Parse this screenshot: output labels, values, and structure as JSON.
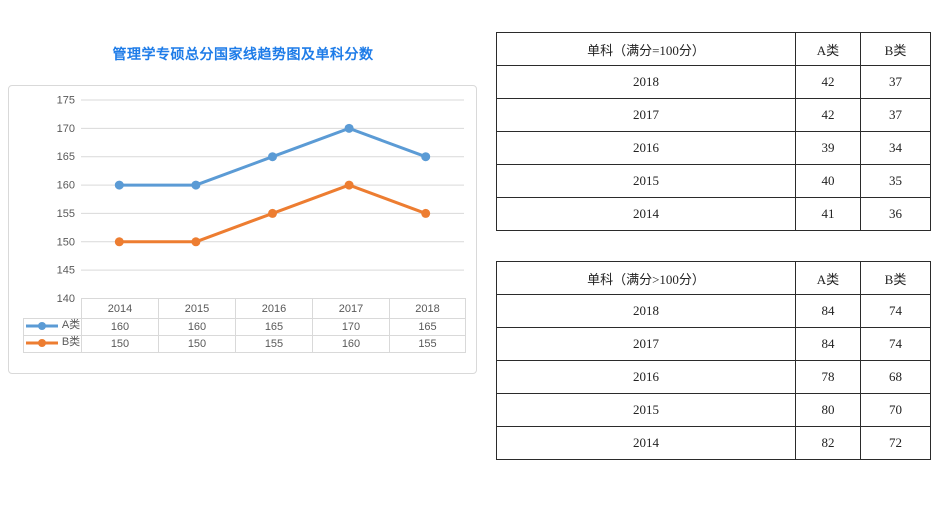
{
  "page": {
    "title": "管理学专硕总分国家线趋势图及单科分数"
  },
  "chart_data": {
    "type": "line",
    "title": "管理学专硕总分国家线趋势图及单科分数",
    "title_color": "#1E7CE8",
    "categories": [
      "2014",
      "2015",
      "2016",
      "2017",
      "2018"
    ],
    "series": [
      {
        "name": "A类",
        "color": "#5B9BD5",
        "values": [
          160,
          160,
          165,
          170,
          165
        ]
      },
      {
        "name": "B类",
        "color": "#ED7D31",
        "values": [
          150,
          150,
          155,
          160,
          155
        ]
      }
    ],
    "ylim": [
      140,
      175
    ],
    "yticks": [
      140,
      145,
      150,
      155,
      160,
      165,
      170,
      175
    ],
    "xlabel": "",
    "ylabel": "",
    "grid": true,
    "gridline_color": "#D9D9D9",
    "axis_text_color": "#595959",
    "legend_position": "data-table-left",
    "marker": "circle"
  },
  "score_tables": [
    {
      "header": {
        "title": "单科（满分=100分）",
        "col_a": "A类",
        "col_b": "B类"
      },
      "rows": [
        {
          "year": "2018",
          "a": "42",
          "b": "37"
        },
        {
          "year": "2017",
          "a": "42",
          "b": "37"
        },
        {
          "year": "2016",
          "a": "39",
          "b": "34"
        },
        {
          "year": "2015",
          "a": "40",
          "b": "35"
        },
        {
          "year": "2014",
          "a": "41",
          "b": "36"
        }
      ]
    },
    {
      "header": {
        "title": "单科（满分>100分）",
        "col_a": "A类",
        "col_b": "B类"
      },
      "rows": [
        {
          "year": "2018",
          "a": "84",
          "b": "74"
        },
        {
          "year": "2017",
          "a": "84",
          "b": "74"
        },
        {
          "year": "2016",
          "a": "78",
          "b": "68"
        },
        {
          "year": "2015",
          "a": "80",
          "b": "70"
        },
        {
          "year": "2014",
          "a": "82",
          "b": "72"
        }
      ]
    }
  ]
}
